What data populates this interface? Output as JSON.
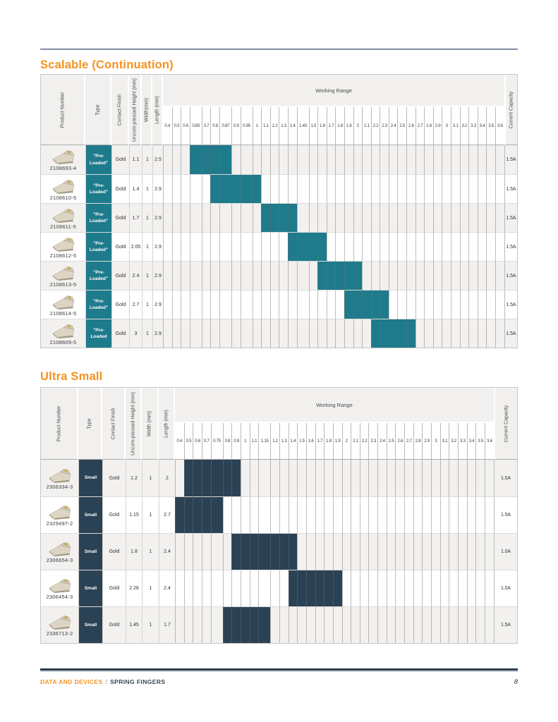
{
  "sections": [
    {
      "heading": "Scalable (Continuation)",
      "table": {
        "accent_color": "#1E7B8B",
        "column_headers": {
          "product_number": "Product Number",
          "type": "Type",
          "contact_finish": "Contact Finish",
          "uncompressed_height": "Uncom-pressed Height (mm)",
          "width": "Width(mm)",
          "length": "Length (mm)",
          "working_range": "Working Range",
          "current_capacity": "Current Capacity"
        },
        "working_range_ticks": [
          "0.4",
          "0.5",
          "0.6",
          "0.65",
          "0.7",
          "0.8",
          "0.87",
          "0.9",
          "0.95",
          "1",
          "1.1",
          "1.2",
          "1.3",
          "1.4",
          "1.45",
          "1.5",
          "1.6",
          "1.7",
          "1.8",
          "1.9",
          "2",
          "2.1",
          "2.2",
          "2.3",
          "2.4",
          "2.5",
          "2.6",
          "2.7",
          "2.8",
          "2.9",
          "3",
          "3.1",
          "3.2",
          "3.3",
          "3.4",
          "3.5",
          "3.6"
        ],
        "rows": [
          {
            "product_number": "2108693-4",
            "type": "\"Pre-Loaded\"",
            "contact_finish": "Gold",
            "uncompressed_height": "1.1",
            "width": "1",
            "length": "2.5",
            "working_range_start": "0.65",
            "working_range_end": "0.87",
            "current_capacity": "1.5A"
          },
          {
            "product_number": "2108610-5",
            "type": "\"Pre-Loaded\"",
            "contact_finish": "Gold",
            "uncompressed_height": "1.4",
            "width": "1",
            "length": "2.9",
            "working_range_start": "0.8",
            "working_range_end": "1",
            "current_capacity": "1.5A"
          },
          {
            "product_number": "2108611-5",
            "type": "\"Pre-Loaded\"",
            "contact_finish": "Gold",
            "uncompressed_height": "1.7",
            "width": "1",
            "length": "2.9",
            "working_range_start": "1.1",
            "working_range_end": "1.4",
            "current_capacity": "1.5A"
          },
          {
            "product_number": "2108612-5",
            "type": "\"Pre-Loaded\"",
            "contact_finish": "Gold",
            "uncompressed_height": "2.05",
            "width": "1",
            "length": "2.9",
            "working_range_start": "1.4",
            "working_range_end": "1.6",
            "current_capacity": "1.5A"
          },
          {
            "product_number": "2108613-5",
            "type": "\"Pre-Loaded\"",
            "contact_finish": "Gold",
            "uncompressed_height": "2.4",
            "width": "1",
            "length": "2.9",
            "working_range_start": "1.6",
            "working_range_end": "2",
            "current_capacity": "1.5A"
          },
          {
            "product_number": "2108614-5",
            "type": "\"Pre-Loaded\"",
            "contact_finish": "Gold",
            "uncompressed_height": "2.7",
            "width": "1",
            "length": "2.9",
            "working_range_start": "1.9",
            "working_range_end": "2.3",
            "current_capacity": "1.5A"
          },
          {
            "product_number": "2108609-5",
            "type": "\"Pre-Loaded",
            "contact_finish": "Gold",
            "uncompressed_height": "3",
            "width": "1",
            "length": "2.9",
            "working_range_start": "2.2",
            "working_range_end": "2.6",
            "current_capacity": "1.5A"
          }
        ]
      }
    },
    {
      "heading": "Ultra Small",
      "table": {
        "accent_color": "#2B4254",
        "column_headers": {
          "product_number": "Product Number",
          "type": "Type",
          "contact_finish": "Contact Finish",
          "uncompressed_height": "Uncom-pressed Height (mm)",
          "width": "Width (mm)",
          "length": "Length (mm)",
          "working_range": "Working Range",
          "current_capacity": "Current Capacity"
        },
        "working_range_ticks": [
          "0.4",
          "0.5",
          "0.6",
          "0.7",
          "0.75",
          "0.8",
          "0.9",
          "1",
          "1.1",
          "1.15",
          "1.2",
          "1.3",
          "1.4",
          "1.5",
          "1.6",
          "1.7",
          "1.8",
          "1.9",
          "2",
          "2.1",
          "2.2",
          "2.3",
          "2.4",
          "2.5",
          "2.6",
          "2.7",
          "2.8",
          "2.9",
          "3",
          "3.1",
          "3.2",
          "3.3",
          "3.4",
          "3.5",
          "3.6"
        ],
        "rows": [
          {
            "product_number": "2306334-3",
            "type": "Small",
            "contact_finish": "Gold",
            "uncompressed_height": "1.2",
            "width": "1",
            "length": "2",
            "working_range_start": "0.5",
            "working_range_end": "0.9",
            "current_capacity": "1.0A"
          },
          {
            "product_number": "2329497-2",
            "type": "Small",
            "contact_finish": "Gold",
            "uncompressed_height": "1.15",
            "width": "1",
            "length": "2.7",
            "working_range_start": "0.4",
            "working_range_end": "0.75",
            "current_capacity": "1.5A"
          },
          {
            "product_number": "2306654-3",
            "type": "Small",
            "contact_finish": "Gold",
            "uncompressed_height": "1.8",
            "width": "1",
            "length": "2.4",
            "working_range_start": "0.9",
            "working_range_end": "1.4",
            "current_capacity": "1.0A"
          },
          {
            "product_number": "2306454-3",
            "type": "Small",
            "contact_finish": "Gold",
            "uncompressed_height": "2.28",
            "width": "1",
            "length": "2.4",
            "working_range_start": "1.4",
            "working_range_end": "1.9",
            "current_capacity": "1.0A"
          },
          {
            "product_number": "2336713-2",
            "type": "Small",
            "contact_finish": "Gold",
            "uncompressed_height": "1.45",
            "width": "1",
            "length": "1.7",
            "working_range_start": "0.8",
            "working_range_end": "1.15",
            "current_capacity": "1.5A"
          }
        ]
      }
    }
  ],
  "footer": {
    "category": "DATA AND DEVICES",
    "separator": "/",
    "document_title": "SPRING FINGERS",
    "page_number": "8"
  },
  "icons": {
    "product_image": "spring-finger-icon"
  },
  "colors": {
    "accent_orange": "#F39321",
    "table1_fill_teal": "#1E7B8B",
    "table2_fill_navy": "#2B4254",
    "header_bg": "#F1F0EE",
    "row_stripe": "#F2F1EF",
    "grid_line": "#B9B9B9",
    "rule_navy": "#515D7D",
    "footer_bar": "#2C3D4B"
  }
}
